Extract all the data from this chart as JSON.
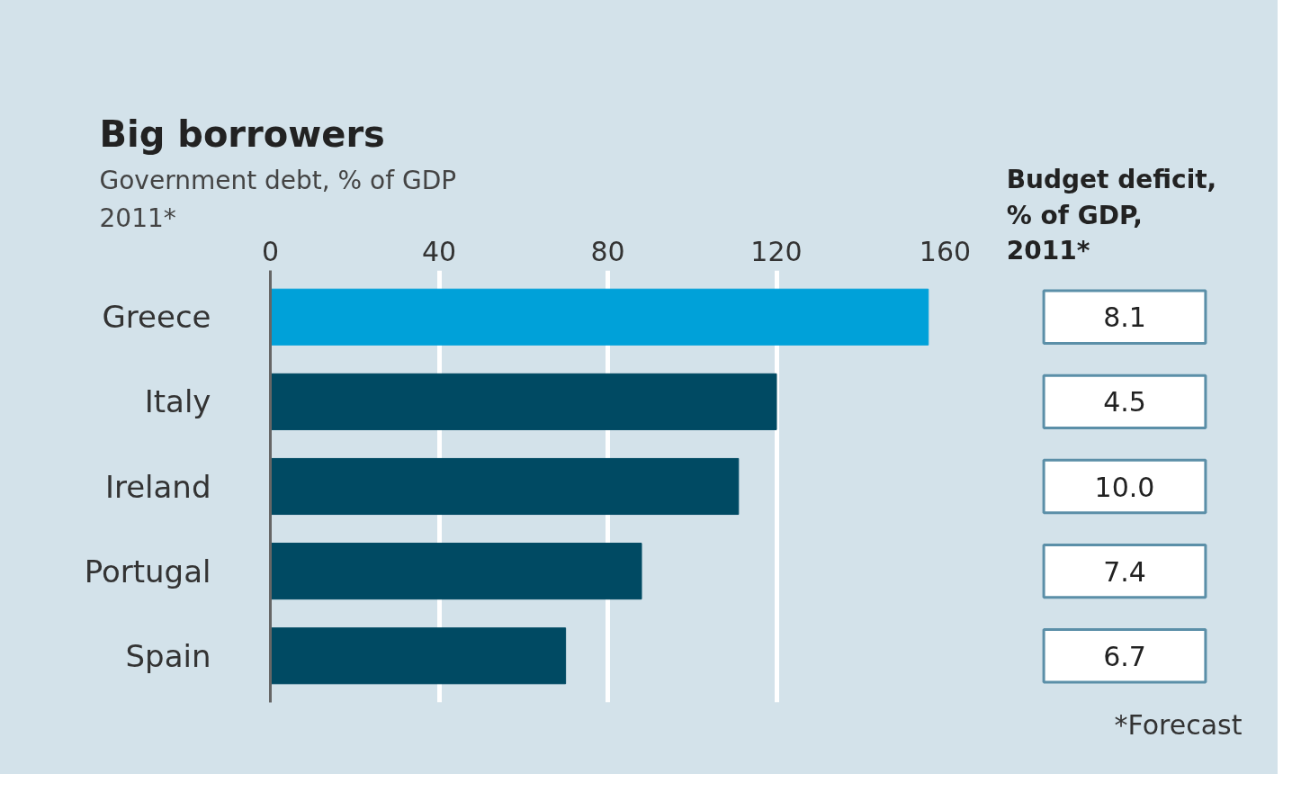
{
  "chart_data": [
    {
      "type": "bar",
      "orientation": "horizontal",
      "title": "Big borrowers",
      "subtitle": "Government debt, % of GDP\n2011*",
      "categories": [
        "Greece",
        "Italy",
        "Ireland",
        "Portugal",
        "Spain"
      ],
      "values": [
        156,
        120,
        111,
        88,
        70
      ],
      "colors": [
        "#00a1d9",
        "#004a63",
        "#004a63",
        "#004a63",
        "#004a63"
      ],
      "xlim": [
        0,
        160
      ],
      "xticks": [
        0,
        40,
        80,
        120,
        160
      ],
      "grid": "x"
    },
    {
      "type": "other",
      "title": "Budget deficit,\n% of GDP,\n2011*",
      "value_labels": [
        "8.1",
        "4.5",
        "10.0",
        "7.4",
        "6.7"
      ],
      "data_labels": true,
      "annotations": [
        "*Forecast"
      ]
    }
  ]
}
